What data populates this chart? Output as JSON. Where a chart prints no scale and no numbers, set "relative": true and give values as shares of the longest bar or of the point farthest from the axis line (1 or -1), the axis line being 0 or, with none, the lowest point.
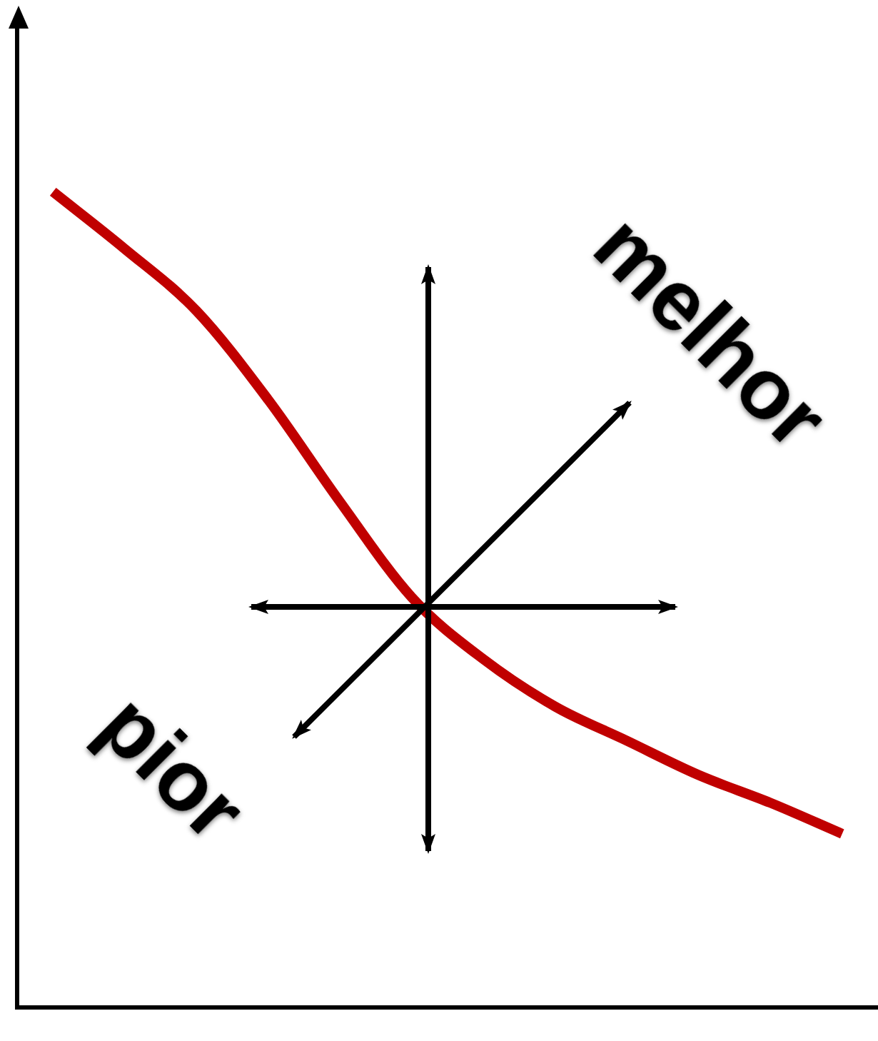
{
  "chart_data": {
    "type": "line",
    "relative": true,
    "categories": [
      null,
      null,
      null,
      null,
      null,
      null,
      null,
      null,
      null,
      null,
      null,
      null
    ],
    "series": [
      {
        "color": "#c00000",
        "values": [
          1.0,
          0.93,
          0.854,
          0.745,
          0.62,
          0.503,
          0.427,
          0.369,
          0.327,
          0.285,
          0.251,
          0.213
        ]
      }
    ],
    "annotations": [
      "melhor",
      "pior"
    ],
    "legend": false,
    "grid": false,
    "marker": "none",
    "line_style": "solid"
  }
}
